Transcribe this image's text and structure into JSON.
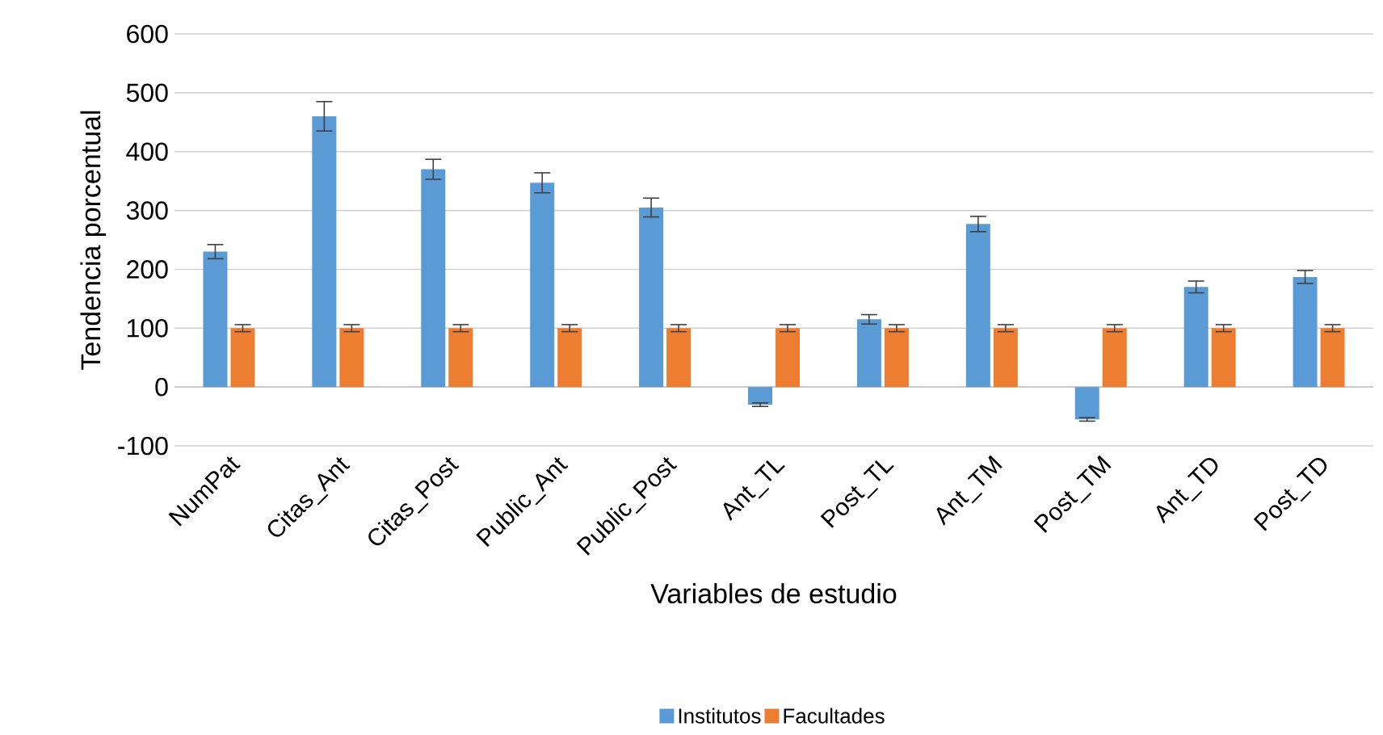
{
  "chart_data": {
    "type": "bar",
    "xlabel": "Variables de estudio",
    "ylabel": "Tendencia porcentual",
    "categories": [
      "NumPat",
      "Citas_Ant",
      "Citas_Post",
      "Public_Ant",
      "Public_Post",
      "Ant_TL",
      "Post_TL",
      "Ant_TM",
      "Post_TM",
      "Ant_TD",
      "Post_TD"
    ],
    "series": [
      {
        "name": "Institutos",
        "color": "#5b9bd5",
        "values": [
          230,
          460,
          370,
          347,
          305,
          -30,
          115,
          277,
          -55,
          170,
          187
        ],
        "errors": [
          12,
          25,
          17,
          17,
          16,
          3,
          8,
          13,
          3,
          10,
          11
        ]
      },
      {
        "name": "Facultades",
        "color": "#ed7d31",
        "values": [
          100,
          100,
          100,
          100,
          100,
          100,
          100,
          100,
          100,
          100,
          100
        ],
        "errors": [
          6,
          6,
          6,
          6,
          6,
          6,
          6,
          6,
          6,
          6,
          6
        ]
      }
    ],
    "ylim": [
      -100,
      600
    ],
    "yticks": [
      -100,
      0,
      100,
      200,
      300,
      400,
      500,
      600
    ],
    "grid": "y",
    "legend": "bottom"
  }
}
